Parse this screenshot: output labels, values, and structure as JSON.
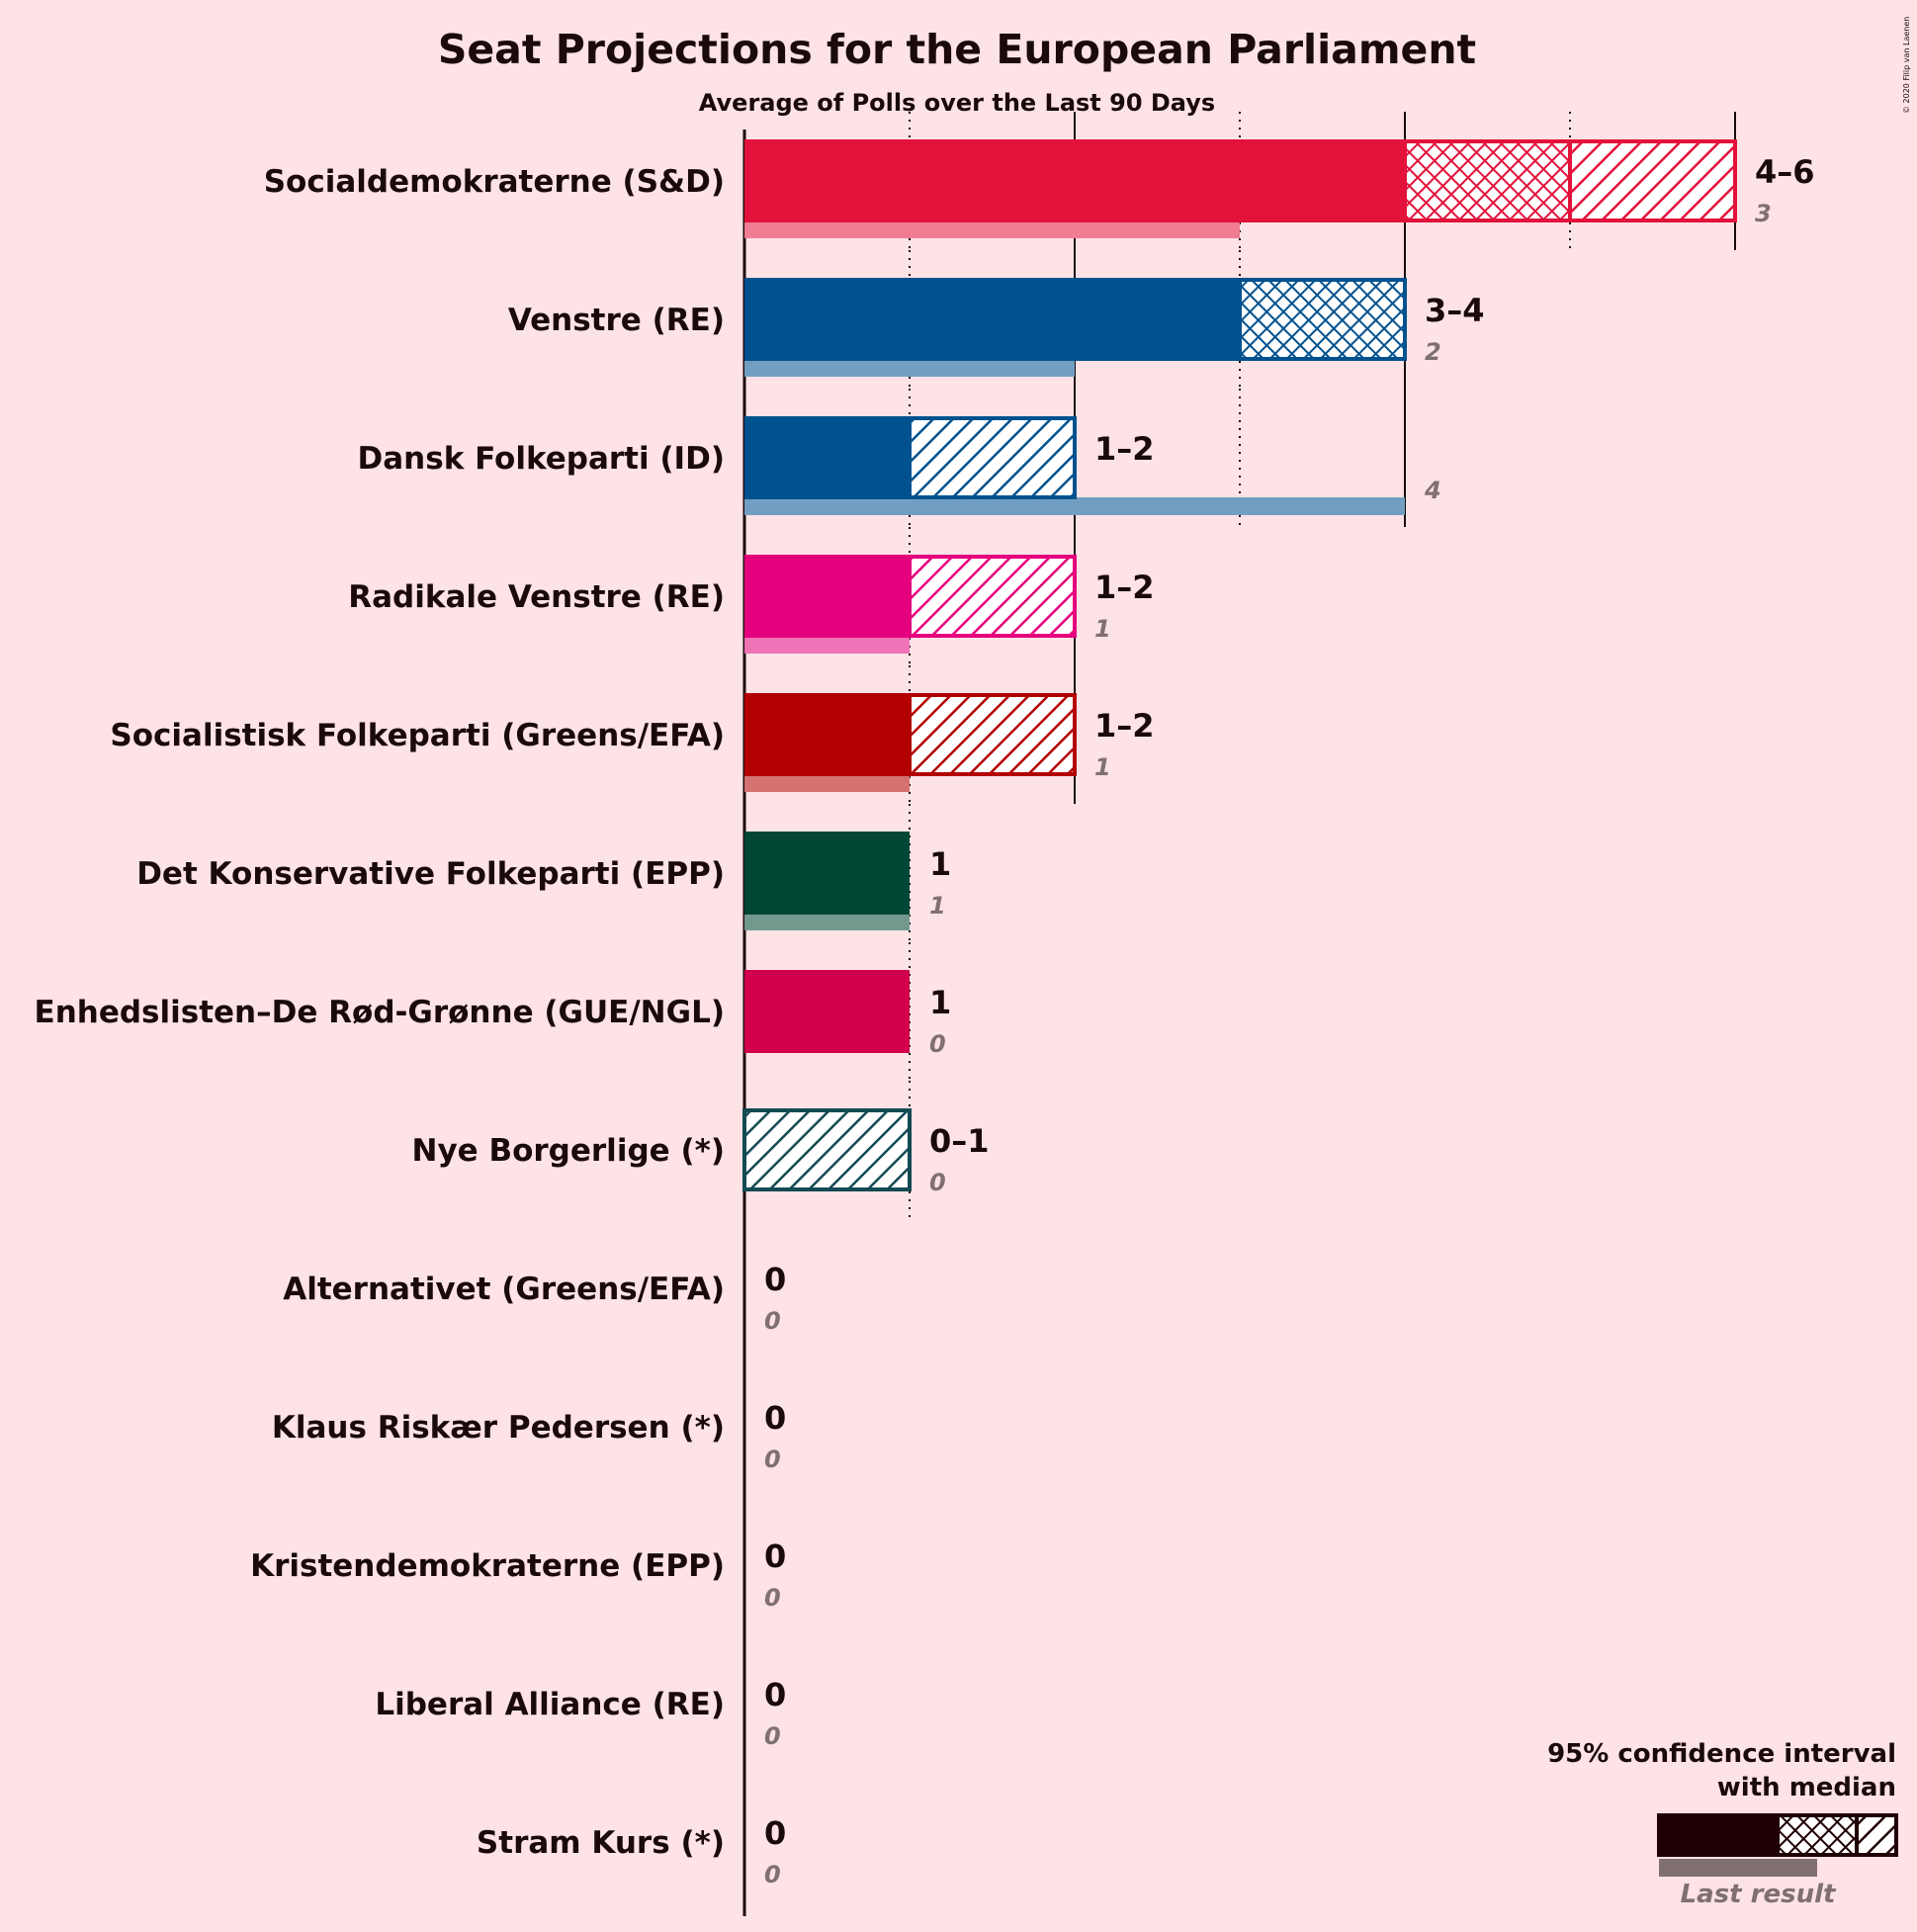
{
  "title": "Seat Projections for the European Parliament",
  "subtitle": "Average of Polls over the Last 90 Days",
  "copyright": "© 2020 Filip van Laenen",
  "legend": {
    "line1": "95% confidence interval",
    "line2": "with median",
    "last_result": "Last result",
    "color": "#1f0005"
  },
  "chart_data": {
    "type": "bar",
    "orientation": "horizontal",
    "x_unit": "seats",
    "xlim": [
      0,
      6
    ],
    "parties": [
      {
        "name": "Socialdemokraterne (S&D)",
        "color": "#e3123b",
        "lower": 4,
        "median": 5,
        "upper": 6,
        "label": "4–6",
        "last": 3,
        "last_label": "3"
      },
      {
        "name": "Venstre (RE)",
        "color": "#00528f",
        "lower": 3,
        "median": 4,
        "upper": 4,
        "label": "3–4",
        "last": 2,
        "last_label": "2"
      },
      {
        "name": "Dansk Folkeparti (ID)",
        "color": "#00528f",
        "lower": 1,
        "median": 1,
        "upper": 2,
        "label": "1–2",
        "last": 4,
        "last_label": "4"
      },
      {
        "name": "Radikale Venstre (RE)",
        "color": "#e5007d",
        "lower": 1,
        "median": 1,
        "upper": 2,
        "label": "1–2",
        "last": 1,
        "last_label": "1"
      },
      {
        "name": "Socialistisk Folkeparti (Greens/EFA)",
        "color": "#b30000",
        "lower": 1,
        "median": 1,
        "upper": 2,
        "label": "1–2",
        "last": 1,
        "last_label": "1"
      },
      {
        "name": "Det Konservative Folkeparti (EPP)",
        "color": "#024735",
        "lower": 1,
        "median": 1,
        "upper": 1,
        "label": "1",
        "last": 1,
        "last_label": "1"
      },
      {
        "name": "Enhedslisten–De Rød-Grønne (GUE/NGL)",
        "color": "#d0004d",
        "lower": 1,
        "median": 1,
        "upper": 1,
        "label": "1",
        "last": 0,
        "last_label": "0"
      },
      {
        "name": "Nye Borgerlige (*)",
        "color": "#134a53",
        "lower": 0,
        "median": 0,
        "upper": 1,
        "label": "0–1",
        "last": 0,
        "last_label": "0"
      },
      {
        "name": "Alternativet (Greens/EFA)",
        "color": "#2b8738",
        "lower": 0,
        "median": 0,
        "upper": 0,
        "label": "0",
        "last": 0,
        "last_label": "0"
      },
      {
        "name": "Klaus Riskær Pedersen (*)",
        "color": "#808080",
        "lower": 0,
        "median": 0,
        "upper": 0,
        "label": "0",
        "last": 0,
        "last_label": "0"
      },
      {
        "name": "Kristendemokraterne (EPP)",
        "color": "#8b2269",
        "lower": 0,
        "median": 0,
        "upper": 0,
        "label": "0",
        "last": 0,
        "last_label": "0"
      },
      {
        "name": "Liberal Alliance (RE)",
        "color": "#12213f",
        "lower": 0,
        "median": 0,
        "upper": 0,
        "label": "0",
        "last": 0,
        "last_label": "0"
      },
      {
        "name": "Stram Kurs (*)",
        "color": "#808080",
        "lower": 0,
        "median": 0,
        "upper": 0,
        "label": "0",
        "last": 0,
        "last_label": "0"
      }
    ]
  }
}
